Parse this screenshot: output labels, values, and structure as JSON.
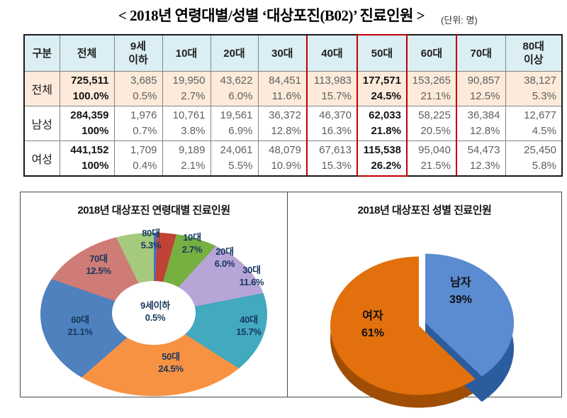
{
  "page": {
    "title": "< 2018년 연령대별/성별 ‘대상포진(B02)’ 진료인원 >",
    "unit_note": "(단위: 명)"
  },
  "table": {
    "header": [
      "구분",
      "전체",
      "9세\n이하",
      "10대",
      "20대",
      "30대",
      "40대",
      "50대",
      "60대",
      "70대",
      "80대\n이상"
    ],
    "highlight_color": "#C00000",
    "highlighted_columns": [
      "40대",
      "50대",
      "60대"
    ],
    "emphasis_column": "50대",
    "rows": [
      {
        "label": "전체",
        "cells": [
          {
            "n": "725,511",
            "p": "100.0%"
          },
          {
            "n": "3,685",
            "p": "0.5%"
          },
          {
            "n": "19,950",
            "p": "2.7%"
          },
          {
            "n": "43,622",
            "p": "6.0%"
          },
          {
            "n": "84,451",
            "p": "11.6%"
          },
          {
            "n": "113,983",
            "p": "15.7%"
          },
          {
            "n": "177,571",
            "p": "24.5%"
          },
          {
            "n": "153,265",
            "p": "21.1%"
          },
          {
            "n": "90,857",
            "p": "12.5%"
          },
          {
            "n": "38,127",
            "p": "5.3%"
          }
        ]
      },
      {
        "label": "남성",
        "cells": [
          {
            "n": "284,359",
            "p": "100%"
          },
          {
            "n": "1,976",
            "p": "0.7%"
          },
          {
            "n": "10,761",
            "p": "3.8%"
          },
          {
            "n": "19,561",
            "p": "6.9%"
          },
          {
            "n": "36,372",
            "p": "12.8%"
          },
          {
            "n": "46,370",
            "p": "16.3%"
          },
          {
            "n": "62,033",
            "p": "21.8%"
          },
          {
            "n": "58,225",
            "p": "20.5%"
          },
          {
            "n": "36,384",
            "p": "12.8%"
          },
          {
            "n": "12,677",
            "p": "4.5%"
          }
        ]
      },
      {
        "label": "여성",
        "cells": [
          {
            "n": "441,152",
            "p": "100%"
          },
          {
            "n": "1,709",
            "p": "0.4%"
          },
          {
            "n": "9,189",
            "p": "2.1%"
          },
          {
            "n": "24,061",
            "p": "5.5%"
          },
          {
            "n": "48,079",
            "p": "10.9%"
          },
          {
            "n": "67,613",
            "p": "15.3%"
          },
          {
            "n": "115,538",
            "p": "26.2%"
          },
          {
            "n": "95,040",
            "p": "21.5%"
          },
          {
            "n": "54,473",
            "p": "12.3%"
          },
          {
            "n": "25,450",
            "p": "5.8%"
          }
        ]
      }
    ]
  },
  "chart_data": [
    {
      "type": "pie",
      "subtype": "donut",
      "title": "2018년 대상포진 연령대별 진료인원",
      "legend_position": "none",
      "slices": [
        {
          "label": "9세이하",
          "value": 0.5,
          "pct_text": "0.5%",
          "color": "#4472C4"
        },
        {
          "label": "10대",
          "value": 2.7,
          "pct_text": "2.7%",
          "color": "#C14236"
        },
        {
          "label": "20대",
          "value": 6.0,
          "pct_text": "6.0%",
          "color": "#76B041"
        },
        {
          "label": "30대",
          "value": 11.6,
          "pct_text": "11.6%",
          "color": "#B7A5D8"
        },
        {
          "label": "40대",
          "value": 15.7,
          "pct_text": "15.7%",
          "color": "#42A9BF"
        },
        {
          "label": "50대",
          "value": 24.5,
          "pct_text": "24.5%",
          "color": "#F79243"
        },
        {
          "label": "60대",
          "value": 21.1,
          "pct_text": "21.1%",
          "color": "#4E81BD"
        },
        {
          "label": "70대",
          "value": 12.5,
          "pct_text": "12.5%",
          "color": "#CF7B76"
        },
        {
          "label": "80대",
          "value": 5.3,
          "pct_text": "5.3%",
          "color": "#A6CA7D"
        }
      ]
    },
    {
      "type": "pie",
      "subtype": "pie-3d-exploded",
      "title": "2018년 대상포진 성별 진료인원",
      "legend_position": "none",
      "slices": [
        {
          "label": "남자",
          "value": 39,
          "pct_text": "39%",
          "color": "#5B8BD0",
          "shade_color": "#2B5C9E"
        },
        {
          "label": "여자",
          "value": 61,
          "pct_text": "61%",
          "color": "#E2700C",
          "shade_color": "#A04E06"
        }
      ]
    }
  ]
}
